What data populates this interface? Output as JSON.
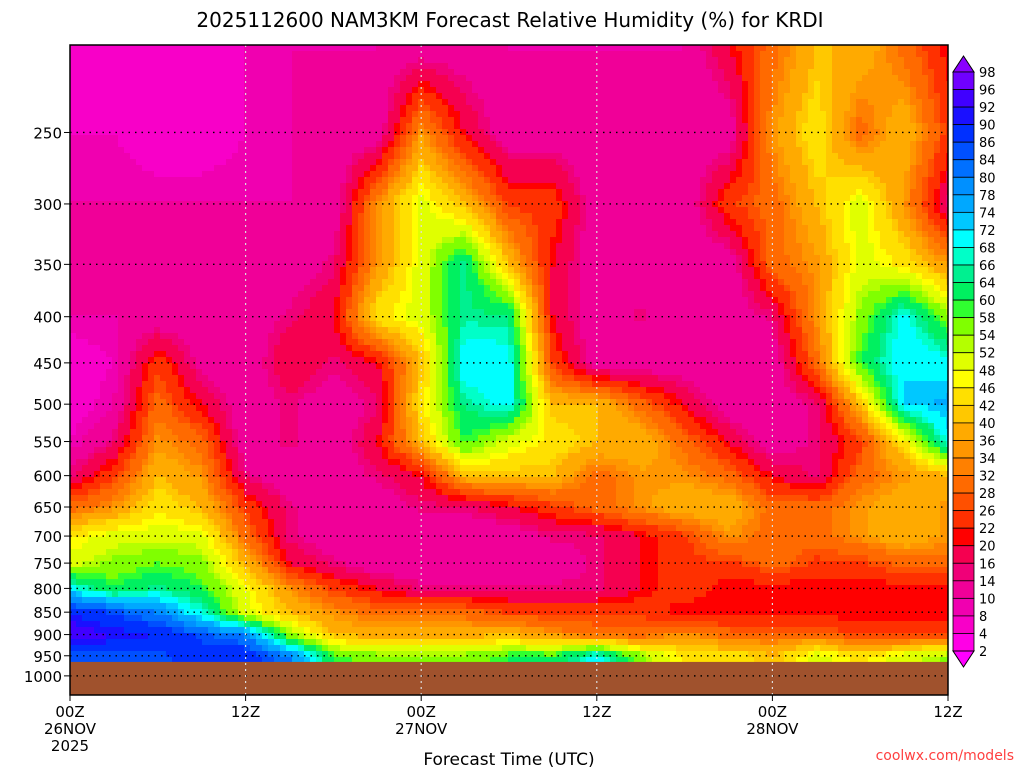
{
  "chart_data": {
    "type": "heatmap",
    "title": "2025112600 NAM3KM Forecast Relative Humidity (%) for KRDI",
    "xlabel": "Forecast Time (UTC)",
    "ylabel": "",
    "x_hours": [
      0,
      3,
      6,
      9,
      12,
      15,
      18,
      21,
      24,
      27,
      30,
      33,
      36,
      39,
      42,
      45,
      48,
      51,
      54,
      57,
      60
    ],
    "xlim": [
      0,
      60
    ],
    "x_ticks": [
      {
        "hour": 0,
        "lines": [
          "00Z",
          "26NOV",
          "2025"
        ]
      },
      {
        "hour": 12,
        "lines": [
          "12Z"
        ]
      },
      {
        "hour": 24,
        "lines": [
          "00Z",
          "27NOV"
        ]
      },
      {
        "hour": 36,
        "lines": [
          "12Z"
        ]
      },
      {
        "hour": 48,
        "lines": [
          "00Z",
          "28NOV"
        ]
      },
      {
        "hour": 60,
        "lines": [
          "12Z"
        ]
      }
    ],
    "pressure_levels": [
      200,
      250,
      300,
      350,
      400,
      450,
      500,
      550,
      600,
      650,
      700,
      750,
      800,
      850,
      900,
      950
    ],
    "ylim": [
      1050,
      200
    ],
    "y_ticks": [
      250,
      300,
      350,
      400,
      450,
      500,
      550,
      600,
      650,
      700,
      750,
      800,
      850,
      900,
      950,
      1000
    ],
    "ground_pressure": 965,
    "z": [
      [
        5,
        5,
        5,
        5,
        8,
        10,
        10,
        10,
        10,
        10,
        10,
        10,
        10,
        10,
        10,
        20,
        30,
        40,
        40,
        30,
        20
      ],
      [
        8,
        8,
        5,
        5,
        8,
        10,
        10,
        10,
        35,
        20,
        10,
        10,
        10,
        10,
        10,
        10,
        35,
        45,
        30,
        40,
        25
      ],
      [
        10,
        10,
        10,
        10,
        10,
        10,
        10,
        35,
        50,
        40,
        25,
        25,
        10,
        10,
        10,
        25,
        30,
        40,
        50,
        35,
        15
      ],
      [
        10,
        10,
        10,
        10,
        10,
        10,
        15,
        35,
        50,
        65,
        40,
        20,
        10,
        10,
        10,
        10,
        30,
        35,
        50,
        45,
        35
      ],
      [
        10,
        10,
        10,
        10,
        10,
        15,
        20,
        45,
        50,
        65,
        65,
        20,
        10,
        15,
        10,
        10,
        15,
        35,
        55,
        70,
        55
      ],
      [
        5,
        8,
        25,
        12,
        10,
        20,
        15,
        20,
        40,
        72,
        70,
        25,
        10,
        10,
        10,
        10,
        10,
        30,
        60,
        72,
        70
      ],
      [
        5,
        10,
        30,
        20,
        10,
        15,
        10,
        15,
        45,
        65,
        70,
        40,
        40,
        30,
        20,
        10,
        10,
        15,
        40,
        72,
        75
      ],
      [
        8,
        15,
        35,
        30,
        10,
        15,
        10,
        20,
        40,
        60,
        50,
        45,
        40,
        40,
        30,
        20,
        10,
        15,
        25,
        45,
        70
      ],
      [
        15,
        25,
        40,
        35,
        15,
        10,
        10,
        15,
        20,
        40,
        40,
        40,
        30,
        35,
        35,
        30,
        20,
        15,
        30,
        35,
        40
      ],
      [
        30,
        35,
        45,
        40,
        25,
        15,
        10,
        10,
        15,
        15,
        20,
        25,
        30,
        35,
        40,
        40,
        30,
        30,
        35,
        40,
        35
      ],
      [
        45,
        50,
        50,
        50,
        30,
        15,
        10,
        10,
        10,
        10,
        10,
        15,
        15,
        20,
        25,
        35,
        30,
        30,
        35,
        40,
        35
      ],
      [
        50,
        55,
        58,
        55,
        40,
        20,
        15,
        10,
        10,
        10,
        10,
        10,
        15,
        20,
        25,
        25,
        30,
        25,
        25,
        30,
        30
      ],
      [
        70,
        60,
        65,
        60,
        48,
        35,
        25,
        20,
        15,
        15,
        15,
        15,
        15,
        20,
        25,
        20,
        20,
        20,
        20,
        20,
        20
      ],
      [
        90,
        85,
        80,
        68,
        50,
        40,
        35,
        30,
        30,
        30,
        25,
        25,
        25,
        25,
        20,
        20,
        20,
        20,
        20,
        20,
        20
      ],
      [
        95,
        92,
        90,
        85,
        80,
        55,
        40,
        38,
        38,
        38,
        40,
        35,
        30,
        30,
        35,
        30,
        30,
        30,
        25,
        25,
        25
      ],
      [
        85,
        85,
        85,
        88,
        90,
        80,
        60,
        55,
        55,
        55,
        60,
        60,
        70,
        55,
        45,
        45,
        40,
        50,
        45,
        50,
        55
      ]
    ],
    "colorbar": {
      "labels": [
        98,
        96,
        92,
        90,
        86,
        84,
        80,
        78,
        74,
        72,
        68,
        66,
        64,
        60,
        58,
        54,
        52,
        48,
        46,
        42,
        40,
        36,
        34,
        32,
        28,
        26,
        22,
        20,
        16,
        14,
        10,
        8,
        4,
        2
      ],
      "colors": [
        "#7000ff",
        "#4000ff",
        "#1a10ff",
        "#0030ff",
        "#0050ff",
        "#0070ff",
        "#0090ff",
        "#00a8ff",
        "#00c8ff",
        "#00ffff",
        "#00ffc8",
        "#00f090",
        "#00f060",
        "#30ff30",
        "#80ff00",
        "#b4ff00",
        "#e0ff00",
        "#ffff00",
        "#ffe000",
        "#ffc800",
        "#ffaa00",
        "#ff9600",
        "#ff8000",
        "#ff6a00",
        "#ff5000",
        "#ff3000",
        "#ff0000",
        "#f50050",
        "#f00078",
        "#f00098",
        "#f000b0",
        "#f800c8",
        "#ff00e6"
      ],
      "over_color": "#8a00ff",
      "under_color": "#ff00ff"
    },
    "ground_color": "#a0522d",
    "grid": true,
    "legend": "right"
  },
  "watermark": "coolwx.com/models"
}
